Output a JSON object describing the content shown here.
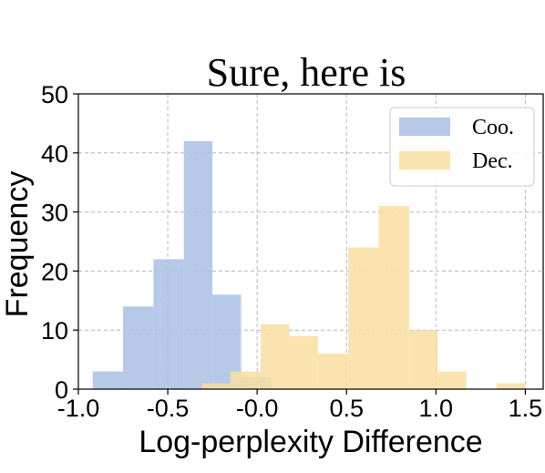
{
  "chart_data": {
    "type": "histogram",
    "title": "Sure, here is",
    "xlabel": "Log-perplexity Difference",
    "ylabel": "Frequency",
    "xlim": [
      -1.0,
      1.6
    ],
    "ylim": [
      0,
      50
    ],
    "xticks": [
      "-1.0",
      "-0.5",
      "-0.0",
      "0.5",
      "1.0",
      "1.5"
    ],
    "xtick_values": [
      -1.0,
      -0.5,
      0.0,
      0.5,
      1.0,
      1.5
    ],
    "yticks": [
      "0",
      "10",
      "20",
      "30",
      "40",
      "50"
    ],
    "ytick_values": [
      0,
      10,
      20,
      30,
      40,
      50
    ],
    "grid": true,
    "legend_position": "top-right",
    "series": [
      {
        "name": "Coo.",
        "color": "#a9c0e3",
        "bins": [
          {
            "x0": -0.92,
            "x1": -0.75,
            "value": 3
          },
          {
            "x0": -0.75,
            "x1": -0.58,
            "value": 14
          },
          {
            "x0": -0.58,
            "x1": -0.41,
            "value": 22
          },
          {
            "x0": -0.41,
            "x1": -0.25,
            "value": 42
          },
          {
            "x0": -0.25,
            "x1": -0.09,
            "value": 16
          },
          {
            "x0": -0.09,
            "x1": 0.08,
            "value": 2
          }
        ]
      },
      {
        "name": "Dec.",
        "color": "#f9dea0",
        "bins": [
          {
            "x0": -0.31,
            "x1": -0.15,
            "value": 1
          },
          {
            "x0": -0.15,
            "x1": 0.02,
            "value": 3
          },
          {
            "x0": 0.02,
            "x1": 0.18,
            "value": 11
          },
          {
            "x0": 0.18,
            "x1": 0.34,
            "value": 9
          },
          {
            "x0": 0.34,
            "x1": 0.51,
            "value": 6
          },
          {
            "x0": 0.51,
            "x1": 0.68,
            "value": 24
          },
          {
            "x0": 0.68,
            "x1": 0.85,
            "value": 31
          },
          {
            "x0": 0.85,
            "x1": 1.01,
            "value": 10
          },
          {
            "x0": 1.01,
            "x1": 1.17,
            "value": 3
          },
          {
            "x0": 1.17,
            "x1": 1.34,
            "value": 0
          },
          {
            "x0": 1.34,
            "x1": 1.5,
            "value": 1
          }
        ]
      }
    ]
  }
}
